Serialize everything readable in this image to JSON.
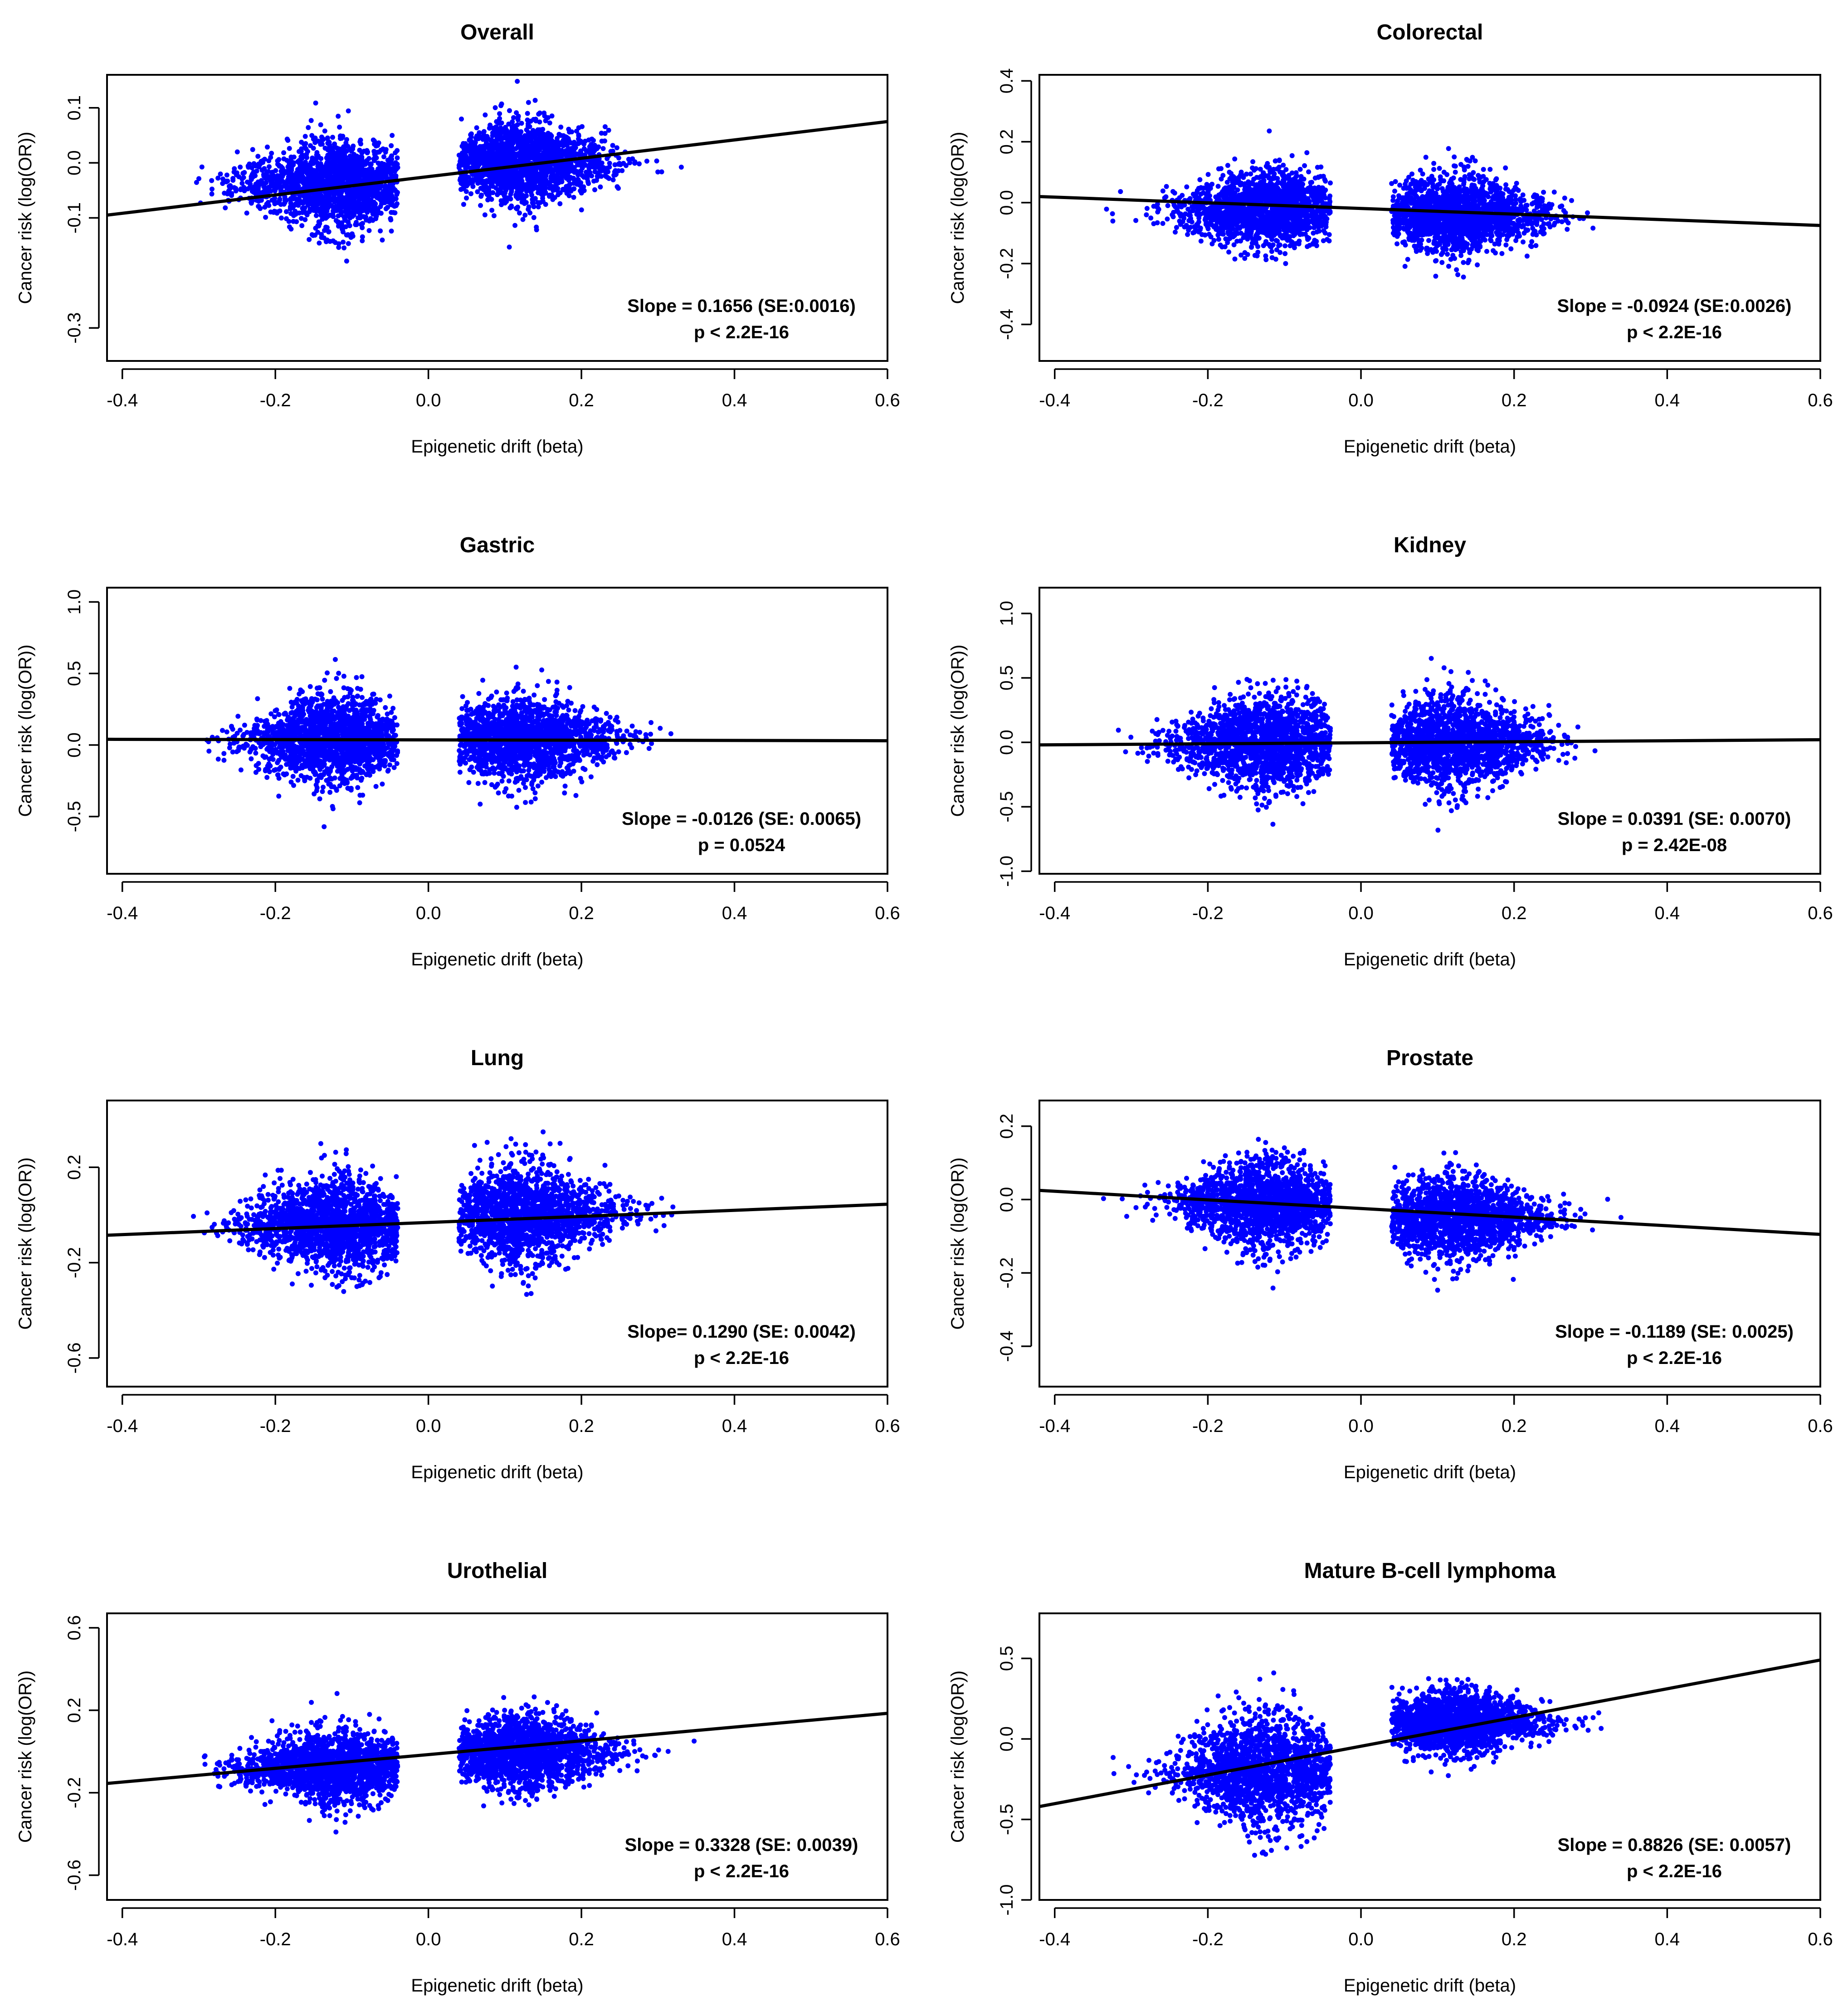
{
  "chart_data": [
    {
      "type": "scatter",
      "title": "Overall",
      "xlabel": "Epigenetic drift (beta)",
      "ylabel": "Cancer risk (log(OR))",
      "xlim": [
        -0.42,
        0.6
      ],
      "ylim": [
        -0.36,
        0.16
      ],
      "xticks": [
        -0.4,
        -0.2,
        0.0,
        0.2,
        0.4,
        0.6
      ],
      "xtick_labels": [
        "-0.4",
        "-0.2",
        "0.0",
        "0.2",
        "0.4",
        "0.6"
      ],
      "yticks": [
        -0.3,
        -0.1,
        0.0,
        0.1
      ],
      "ytick_labels": [
        "-0.3",
        "-0.1",
        "0.0",
        "0.1"
      ],
      "point_color": "#0000ff",
      "line_color": "#000000",
      "regression_line": {
        "x": [
          -0.42,
          0.6
        ],
        "y": [
          -0.095,
          0.075
        ]
      },
      "point_clouds": [
        {
          "x_range": [
            -0.4,
            -0.04
          ],
          "x_center": -0.12,
          "x_spread": 0.06,
          "y_center": -0.04,
          "y_spread": 0.045,
          "n": 1700
        },
        {
          "x_range": [
            0.04,
            0.56
          ],
          "x_center": 0.12,
          "x_spread": 0.06,
          "y_center": 0.0,
          "y_spread": 0.042,
          "n": 1700
        }
      ],
      "annotation": [
        "Slope = 0.1656 (SE:0.0016)",
        "p < 2.2E-16"
      ]
    },
    {
      "type": "scatter",
      "title": "Colorectal",
      "xlabel": "Epigenetic drift (beta)",
      "ylabel": "Cancer risk (log(OR))",
      "xlim": [
        -0.42,
        0.6
      ],
      "ylim": [
        -0.52,
        0.42
      ],
      "xticks": [
        -0.4,
        -0.2,
        0.0,
        0.2,
        0.4,
        0.6
      ],
      "xtick_labels": [
        "-0.4",
        "-0.2",
        "0.0",
        "0.2",
        "0.4",
        "0.6"
      ],
      "yticks": [
        -0.4,
        -0.2,
        0.0,
        0.2,
        0.4
      ],
      "ytick_labels": [
        "-0.4",
        "-0.2",
        "0.0",
        "0.2",
        "0.4"
      ],
      "point_color": "#0000ff",
      "line_color": "#000000",
      "regression_line": {
        "x": [
          -0.42,
          0.6
        ],
        "y": [
          0.02,
          -0.075
        ]
      },
      "point_clouds": [
        {
          "x_range": [
            -0.4,
            -0.04
          ],
          "x_center": -0.12,
          "x_spread": 0.06,
          "y_center": -0.02,
          "y_spread": 0.07,
          "n": 1700
        },
        {
          "x_range": [
            0.04,
            0.56
          ],
          "x_center": 0.12,
          "x_spread": 0.06,
          "y_center": -0.04,
          "y_spread": 0.07,
          "n": 1700
        }
      ],
      "annotation": [
        "Slope = -0.0924 (SE:0.0026)",
        "p < 2.2E-16"
      ]
    },
    {
      "type": "scatter",
      "title": "Gastric",
      "xlabel": "Epigenetic drift (beta)",
      "ylabel": "Cancer risk (log(OR))",
      "xlim": [
        -0.42,
        0.6
      ],
      "ylim": [
        -0.9,
        1.1
      ],
      "xticks": [
        -0.4,
        -0.2,
        0.0,
        0.2,
        0.4,
        0.6
      ],
      "xtick_labels": [
        "-0.4",
        "-0.2",
        "0.0",
        "0.2",
        "0.4",
        "0.6"
      ],
      "yticks": [
        -0.5,
        0.0,
        0.5,
        1.0
      ],
      "ytick_labels": [
        "-0.5",
        "0.0",
        "0.5",
        "1.0"
      ],
      "point_color": "#0000ff",
      "line_color": "#000000",
      "regression_line": {
        "x": [
          -0.42,
          0.6
        ],
        "y": [
          0.04,
          0.03
        ]
      },
      "point_clouds": [
        {
          "x_range": [
            -0.4,
            -0.04
          ],
          "x_center": -0.12,
          "x_spread": 0.06,
          "y_center": 0.04,
          "y_spread": 0.17,
          "n": 1700
        },
        {
          "x_range": [
            0.04,
            0.56
          ],
          "x_center": 0.12,
          "x_spread": 0.06,
          "y_center": 0.04,
          "y_spread": 0.16,
          "n": 1700
        }
      ],
      "annotation": [
        "Slope = -0.0126 (SE: 0.0065)",
        "p = 0.0524"
      ]
    },
    {
      "type": "scatter",
      "title": "Kidney",
      "xlabel": "Epigenetic drift (beta)",
      "ylabel": "Cancer risk (log(OR))",
      "xlim": [
        -0.42,
        0.6
      ],
      "ylim": [
        -1.02,
        1.2
      ],
      "xticks": [
        -0.4,
        -0.2,
        0.0,
        0.2,
        0.4,
        0.6
      ],
      "xtick_labels": [
        "-0.4",
        "-0.2",
        "0.0",
        "0.2",
        "0.4",
        "0.6"
      ],
      "yticks": [
        -1.0,
        -0.5,
        0.0,
        0.5,
        1.0
      ],
      "ytick_labels": [
        "-1.0",
        "-0.5",
        "0.0",
        "0.5",
        "1.0"
      ],
      "point_color": "#0000ff",
      "line_color": "#000000",
      "regression_line": {
        "x": [
          -0.42,
          0.6
        ],
        "y": [
          -0.02,
          0.02
        ]
      },
      "point_clouds": [
        {
          "x_range": [
            -0.4,
            -0.04
          ],
          "x_center": -0.12,
          "x_spread": 0.06,
          "y_center": 0.0,
          "y_spread": 0.2,
          "n": 1700
        },
        {
          "x_range": [
            0.04,
            0.56
          ],
          "x_center": 0.12,
          "x_spread": 0.06,
          "y_center": 0.0,
          "y_spread": 0.19,
          "n": 1700
        }
      ],
      "annotation": [
        "Slope = 0.0391 (SE: 0.0070)",
        "p = 2.42E-08"
      ]
    },
    {
      "type": "scatter",
      "title": "Lung",
      "xlabel": "Epigenetic drift (beta)",
      "ylabel": "Cancer risk (log(OR))",
      "xlim": [
        -0.42,
        0.6
      ],
      "ylim": [
        -0.72,
        0.48
      ],
      "xticks": [
        -0.4,
        -0.2,
        0.0,
        0.2,
        0.4,
        0.6
      ],
      "xtick_labels": [
        "-0.4",
        "-0.2",
        "0.0",
        "0.2",
        "0.4",
        "0.6"
      ],
      "yticks": [
        -0.6,
        -0.2,
        0.2
      ],
      "ytick_labels": [
        "-0.6",
        "-0.2",
        "0.2"
      ],
      "point_color": "#0000ff",
      "line_color": "#000000",
      "regression_line": {
        "x": [
          -0.42,
          0.6
        ],
        "y": [
          -0.085,
          0.045
        ]
      },
      "point_clouds": [
        {
          "x_range": [
            -0.4,
            -0.04
          ],
          "x_center": -0.12,
          "x_spread": 0.06,
          "y_center": -0.04,
          "y_spread": 0.11,
          "n": 1700
        },
        {
          "x_range": [
            0.04,
            0.56
          ],
          "x_center": 0.12,
          "x_spread": 0.06,
          "y_center": 0.0,
          "y_spread": 0.11,
          "n": 1700
        }
      ],
      "annotation": [
        "Slope= 0.1290 (SE: 0.0042)",
        "p < 2.2E-16"
      ]
    },
    {
      "type": "scatter",
      "title": "Prostate",
      "xlabel": "Epigenetic drift (beta)",
      "ylabel": "Cancer risk (log(OR))",
      "xlim": [
        -0.42,
        0.6
      ],
      "ylim": [
        -0.51,
        0.27
      ],
      "xticks": [
        -0.4,
        -0.2,
        0.0,
        0.2,
        0.4,
        0.6
      ],
      "xtick_labels": [
        "-0.4",
        "-0.2",
        "0.0",
        "0.2",
        "0.4",
        "0.6"
      ],
      "yticks": [
        -0.4,
        -0.2,
        0.0,
        0.2
      ],
      "ytick_labels": [
        "-0.4",
        "-0.2",
        "0.0",
        "0.2"
      ],
      "point_color": "#0000ff",
      "line_color": "#000000",
      "regression_line": {
        "x": [
          -0.42,
          0.6
        ],
        "y": [
          0.025,
          -0.095
        ]
      },
      "point_clouds": [
        {
          "x_range": [
            -0.4,
            -0.04
          ],
          "x_center": -0.12,
          "x_spread": 0.06,
          "y_center": -0.01,
          "y_spread": 0.065,
          "n": 1700
        },
        {
          "x_range": [
            0.04,
            0.56
          ],
          "x_center": 0.12,
          "x_spread": 0.06,
          "y_center": -0.05,
          "y_spread": 0.065,
          "n": 1700
        }
      ],
      "annotation": [
        "Slope = -0.1189 (SE: 0.0025)",
        "p < 2.2E-16"
      ]
    },
    {
      "type": "scatter",
      "title": "Urothelial",
      "xlabel": "Epigenetic drift (beta)",
      "ylabel": "Cancer risk (log(OR))",
      "xlim": [
        -0.42,
        0.6
      ],
      "ylim": [
        -0.72,
        0.67
      ],
      "xticks": [
        -0.4,
        -0.2,
        0.0,
        0.2,
        0.4,
        0.6
      ],
      "xtick_labels": [
        "-0.4",
        "-0.2",
        "0.0",
        "0.2",
        "0.4",
        "0.6"
      ],
      "yticks": [
        -0.6,
        -0.2,
        0.2,
        0.6
      ],
      "ytick_labels": [
        "-0.6",
        "-0.2",
        "0.2",
        "0.6"
      ],
      "point_color": "#0000ff",
      "line_color": "#000000",
      "regression_line": {
        "x": [
          -0.42,
          0.6
        ],
        "y": [
          -0.155,
          0.185
        ]
      },
      "point_clouds": [
        {
          "x_range": [
            -0.4,
            -0.04
          ],
          "x_center": -0.12,
          "x_spread": 0.06,
          "y_center": -0.08,
          "y_spread": 0.1,
          "n": 1700
        },
        {
          "x_range": [
            0.04,
            0.56
          ],
          "x_center": 0.12,
          "x_spread": 0.06,
          "y_center": 0.0,
          "y_spread": 0.1,
          "n": 1700
        }
      ],
      "annotation": [
        "Slope = 0.3328 (SE: 0.0039)",
        "p < 2.2E-16"
      ]
    },
    {
      "type": "scatter",
      "title": "Mature B-cell lymphoma",
      "xlabel": "Epigenetic drift (beta)",
      "ylabel": "Cancer risk (log(OR))",
      "xlim": [
        -0.42,
        0.6
      ],
      "ylim": [
        -1.0,
        0.78
      ],
      "xticks": [
        -0.4,
        -0.2,
        0.0,
        0.2,
        0.4,
        0.6
      ],
      "xtick_labels": [
        "-0.4",
        "-0.2",
        "0.0",
        "0.2",
        "0.4",
        "0.6"
      ],
      "yticks": [
        -1.0,
        -0.5,
        0.0,
        0.5
      ],
      "ytick_labels": [
        "-1.0",
        "-0.5",
        "0.0",
        "0.5"
      ],
      "point_color": "#0000ff",
      "line_color": "#000000",
      "regression_line": {
        "x": [
          -0.42,
          0.6
        ],
        "y": [
          -0.42,
          0.49
        ]
      },
      "point_clouds": [
        {
          "x_range": [
            -0.4,
            -0.04
          ],
          "x_center": -0.12,
          "x_spread": 0.06,
          "y_center": -0.2,
          "y_spread": 0.2,
          "n": 1700
        },
        {
          "x_range": [
            0.04,
            0.56
          ],
          "x_center": 0.12,
          "x_spread": 0.06,
          "y_center": 0.1,
          "y_spread": 0.11,
          "n": 1700
        }
      ],
      "annotation": [
        "Slope = 0.8826 (SE: 0.0057)",
        "p < 2.2E-16"
      ]
    }
  ]
}
